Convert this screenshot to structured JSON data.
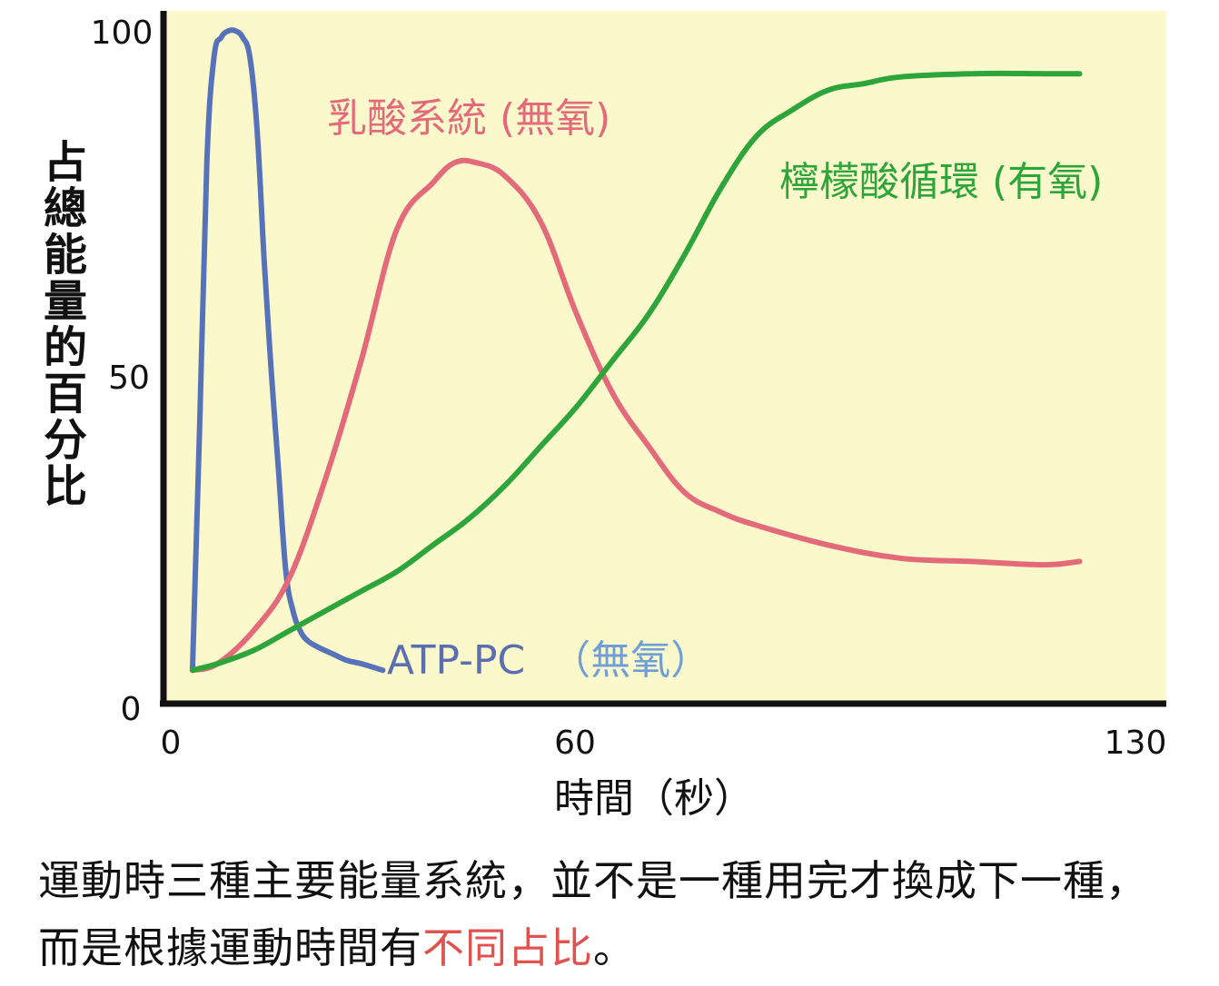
{
  "chart_data": {
    "type": "line",
    "title": "",
    "xlabel": "時間（秒）",
    "ylabel": "占總能量的百分比",
    "xlim": [
      0,
      130
    ],
    "ylim": [
      0,
      100
    ],
    "x_ticks": [
      "0",
      "60",
      "130"
    ],
    "y_ticks": [
      "0",
      "50",
      "100"
    ],
    "background": "#fbf8cc",
    "series": [
      {
        "name": "ATP-PC　（無氧）",
        "name_parts": [
          "ATP-PC",
          "（無氧）"
        ],
        "color": "#5672b8",
        "label_color": "#5b6fb0",
        "label_color_2": "#6f9fd6",
        "x": [
          1.5,
          2.5,
          3.5,
          4.5,
          5.5,
          6.5,
          7.5,
          8.5,
          9.5,
          10.5,
          11.5,
          12.5,
          13.5,
          14.5,
          15.5,
          16.5,
          17.5,
          19,
          21,
          23,
          25,
          28
        ],
        "y": [
          3,
          40,
          80,
          96,
          99,
          100,
          100,
          99,
          96,
          85,
          65,
          48,
          33,
          18,
          12,
          9,
          7.5,
          6.5,
          5.5,
          4.5,
          4,
          3
        ]
      },
      {
        "name": "乳酸系統 (無氧)",
        "color": "#e36a7a",
        "label_color": "#e36a7a",
        "x": [
          1.5,
          5,
          10,
          15,
          20,
          25,
          30,
          35,
          38,
          41,
          45,
          50,
          55,
          60,
          65,
          70,
          75,
          80,
          90,
          100,
          110,
          120,
          125
        ],
        "y": [
          3,
          4,
          9,
          17,
          32,
          50,
          70,
          77,
          80,
          80,
          78,
          71,
          57,
          45,
          37,
          30,
          27,
          25,
          22,
          20,
          19.5,
          19,
          19.5
        ]
      },
      {
        "name": "檸檬酸循環 (有氧)",
        "color": "#2ea53a",
        "label_color": "#2ea53a",
        "x": [
          1.5,
          5,
          10,
          15,
          20,
          25,
          30,
          35,
          40,
          45,
          50,
          55,
          60,
          65,
          70,
          75,
          80,
          85,
          90,
          95,
          100,
          110,
          120,
          125
        ],
        "y": [
          3,
          4,
          6,
          9,
          12,
          15,
          18,
          22,
          26,
          31,
          37,
          43,
          50,
          57,
          66,
          76,
          84,
          88,
          91,
          92,
          93,
          93.5,
          93.5,
          93.5
        ]
      }
    ]
  },
  "caption": {
    "line1": "運動時三種主要能量系統，並不是一種用完才換成下一種，",
    "line2_prefix": "而是根據運動時間有",
    "line2_highlight": "不同占比",
    "line2_suffix": "。"
  }
}
